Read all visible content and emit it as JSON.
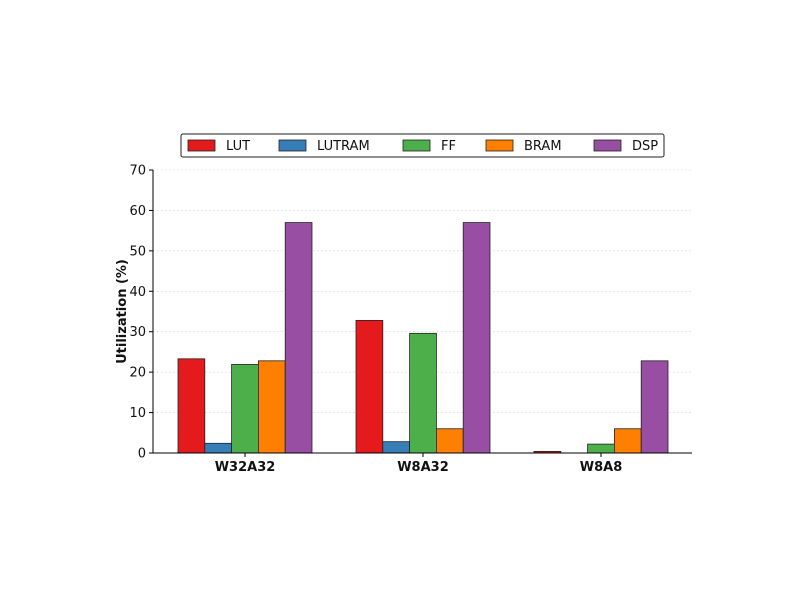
{
  "chart_data": {
    "type": "bar",
    "title": "",
    "xlabel": "",
    "ylabel": "Utilization (%)",
    "ylim": [
      0,
      70
    ],
    "yticks": [
      0,
      10,
      20,
      30,
      40,
      50,
      60,
      70
    ],
    "grid": true,
    "legend_position": "top-center",
    "categories": [
      "W32A32",
      "W8A32",
      "W8A8"
    ],
    "series": [
      {
        "name": "LUT",
        "color": "#e41a1c",
        "values": [
          23.3,
          32.8,
          0.4
        ]
      },
      {
        "name": "LUTRAM",
        "color": "#377eb8",
        "values": [
          2.4,
          2.8,
          0.0
        ]
      },
      {
        "name": "FF",
        "color": "#4daf4a",
        "values": [
          21.9,
          29.6,
          2.2
        ]
      },
      {
        "name": "BRAM",
        "color": "#ff7f00",
        "values": [
          22.8,
          6.0,
          6.0
        ]
      },
      {
        "name": "DSP",
        "color": "#984ea3",
        "values": [
          57.0,
          57.0,
          22.8
        ]
      }
    ]
  }
}
